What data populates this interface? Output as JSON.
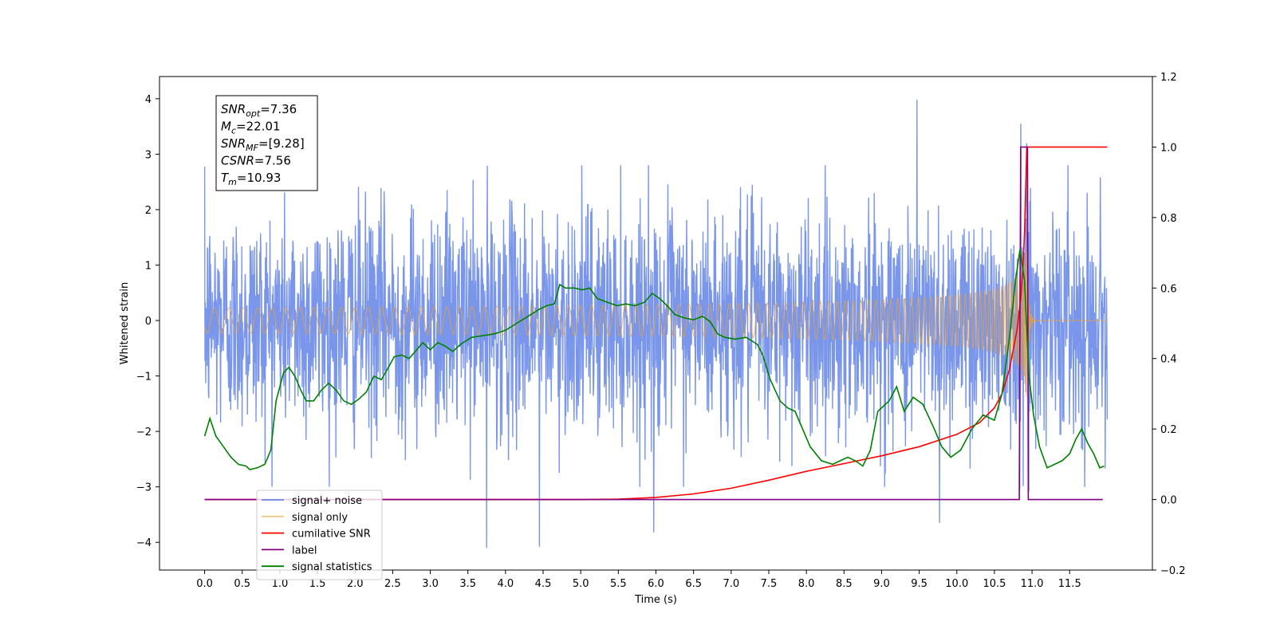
{
  "chart_data": {
    "type": "line",
    "xlabel": "Time (s)",
    "ylabel": "Whitened strain",
    "xlim": [
      -0.6,
      12.6
    ],
    "ylim_left": [
      -4.5,
      4.4
    ],
    "ylim_right": [
      -0.2,
      1.2
    ],
    "x_ticks": [
      0.0,
      0.5,
      1.0,
      1.5,
      2.0,
      2.5,
      3.0,
      3.5,
      4.0,
      4.5,
      5.0,
      5.5,
      6.0,
      6.5,
      7.0,
      7.5,
      8.0,
      8.5,
      9.0,
      9.5,
      10.0,
      10.5,
      11.0,
      11.5
    ],
    "x_tick_labels": [
      "0.0",
      "0.5",
      "1.0",
      "1.5",
      "2.0",
      "2.5",
      "3.0",
      "3.5",
      "4.0",
      "4.5",
      "5.0",
      "5.5",
      "6.0",
      "6.5",
      "7.0",
      "7.5",
      "8.0",
      "8.5",
      "9.0",
      "9.5",
      "10.0",
      "10.5",
      "11.0",
      "11.5"
    ],
    "y_ticks_left": [
      4,
      3,
      2,
      1,
      0,
      -1,
      -2,
      -3,
      -4
    ],
    "y_tick_labels_left": [
      "4",
      "3",
      "2",
      "1",
      "0",
      "−1",
      "−2",
      "−3",
      "−4"
    ],
    "y_ticks_right": [
      1.2,
      1.0,
      0.8,
      0.6,
      0.4,
      0.2,
      0.0,
      -0.2
    ],
    "y_tick_labels_right": [
      "1.2",
      "1.0",
      "0.8",
      "0.6",
      "0.4",
      "0.2",
      "0.0",
      "−0.2"
    ],
    "grid": false,
    "legend_position": "bottom-left",
    "info_box": [
      {
        "sym": "SNR",
        "sub": "opt",
        "rest": "=7.36"
      },
      {
        "sym": "M",
        "sub": "c",
        "rest": "=22.01"
      },
      {
        "sym": "SNR",
        "sub": "MF",
        "rest": "=[9.28]"
      },
      {
        "sym": "CSNR",
        "sub": "",
        "rest": "=7.56"
      },
      {
        "sym": "T",
        "sub": "m",
        "rest": "=10.93"
      }
    ],
    "series": [
      {
        "name": "signal+ noise",
        "axis": "left",
        "color": "#4169e1",
        "kind": "noise",
        "x_range": [
          0.0,
          12.0
        ],
        "amplitude_sigma": 1.0,
        "notable_peaks": [
          [
            9.47,
            3.98
          ],
          [
            9.77,
            -3.65
          ],
          [
            3.75,
            -4.1
          ],
          [
            4.45,
            -4.08
          ],
          [
            10.85,
            3.55
          ],
          [
            10.93,
            3.2
          ],
          [
            5.97,
            -3.82
          ]
        ]
      },
      {
        "name": "signal only",
        "axis": "left",
        "color": "#f0a030",
        "kind": "chirp",
        "x_range": [
          0.0,
          12.0
        ],
        "merger_time": 10.93,
        "peak_amplitude": 1.5
      },
      {
        "name": "cumilative SNR",
        "axis": "right",
        "color": "#ff0000",
        "x": [
          0.0,
          5.0,
          5.5,
          6.0,
          6.5,
          7.0,
          7.5,
          8.0,
          8.5,
          9.0,
          9.5,
          10.0,
          10.3,
          10.5,
          10.6,
          10.7,
          10.8,
          10.85,
          10.88,
          10.9,
          10.93,
          12.0
        ],
        "y": [
          0.0,
          0.0,
          0.001,
          0.006,
          0.016,
          0.032,
          0.055,
          0.08,
          0.102,
          0.124,
          0.15,
          0.185,
          0.218,
          0.26,
          0.3,
          0.37,
          0.48,
          0.57,
          0.66,
          0.76,
          1.0,
          1.0
        ]
      },
      {
        "name": "label",
        "axis": "right",
        "color": "#800080",
        "x": [
          0.0,
          10.83,
          10.84,
          10.85,
          10.94,
          10.95,
          11.94
        ],
        "y": [
          0.0,
          0.0,
          0.55,
          1.0,
          1.0,
          0.0,
          0.0
        ]
      },
      {
        "name": "signal statistics",
        "axis": "right",
        "color": "#008000",
        "x": [
          0.0,
          0.07,
          0.15,
          0.25,
          0.35,
          0.45,
          0.55,
          0.6,
          0.7,
          0.8,
          0.88,
          0.95,
          1.05,
          1.12,
          1.2,
          1.28,
          1.35,
          1.45,
          1.55,
          1.65,
          1.75,
          1.85,
          1.95,
          2.05,
          2.15,
          2.25,
          2.35,
          2.43,
          2.52,
          2.62,
          2.72,
          2.8,
          2.9,
          3.0,
          3.1,
          3.2,
          3.3,
          3.4,
          3.55,
          3.7,
          3.85,
          4.0,
          4.15,
          4.3,
          4.45,
          4.55,
          4.65,
          4.72,
          4.8,
          4.92,
          5.02,
          5.12,
          5.22,
          5.35,
          5.48,
          5.6,
          5.72,
          5.85,
          5.95,
          6.05,
          6.15,
          6.25,
          6.38,
          6.5,
          6.62,
          6.72,
          6.82,
          6.92,
          7.05,
          7.2,
          7.35,
          7.42,
          7.52,
          7.65,
          7.75,
          7.85,
          7.95,
          8.05,
          8.2,
          8.35,
          8.45,
          8.55,
          8.65,
          8.75,
          8.85,
          8.95,
          9.1,
          9.2,
          9.3,
          9.42,
          9.55,
          9.7,
          9.8,
          9.92,
          10.05,
          10.2,
          10.35,
          10.5,
          10.6,
          10.7,
          10.78,
          10.84,
          10.9,
          10.96,
          11.02,
          11.1,
          11.2,
          11.3,
          11.4,
          11.5,
          11.58,
          11.66,
          11.74,
          11.82,
          11.9,
          11.96
        ],
        "y": [
          0.18,
          0.23,
          0.18,
          0.15,
          0.12,
          0.1,
          0.095,
          0.085,
          0.09,
          0.1,
          0.14,
          0.28,
          0.36,
          0.375,
          0.35,
          0.31,
          0.28,
          0.28,
          0.31,
          0.33,
          0.31,
          0.28,
          0.27,
          0.285,
          0.305,
          0.35,
          0.34,
          0.37,
          0.405,
          0.41,
          0.4,
          0.42,
          0.445,
          0.425,
          0.445,
          0.435,
          0.42,
          0.44,
          0.46,
          0.465,
          0.47,
          0.48,
          0.5,
          0.52,
          0.54,
          0.55,
          0.555,
          0.61,
          0.6,
          0.6,
          0.595,
          0.6,
          0.57,
          0.56,
          0.55,
          0.555,
          0.55,
          0.56,
          0.585,
          0.57,
          0.55,
          0.525,
          0.515,
          0.51,
          0.52,
          0.505,
          0.47,
          0.46,
          0.455,
          0.46,
          0.44,
          0.41,
          0.34,
          0.28,
          0.26,
          0.25,
          0.2,
          0.15,
          0.11,
          0.1,
          0.11,
          0.12,
          0.11,
          0.095,
          0.14,
          0.25,
          0.28,
          0.32,
          0.25,
          0.29,
          0.27,
          0.2,
          0.15,
          0.12,
          0.14,
          0.2,
          0.24,
          0.225,
          0.3,
          0.46,
          0.62,
          0.71,
          0.62,
          0.35,
          0.24,
          0.15,
          0.09,
          0.1,
          0.11,
          0.13,
          0.17,
          0.2,
          0.16,
          0.13,
          0.09,
          0.095
        ]
      }
    ]
  }
}
